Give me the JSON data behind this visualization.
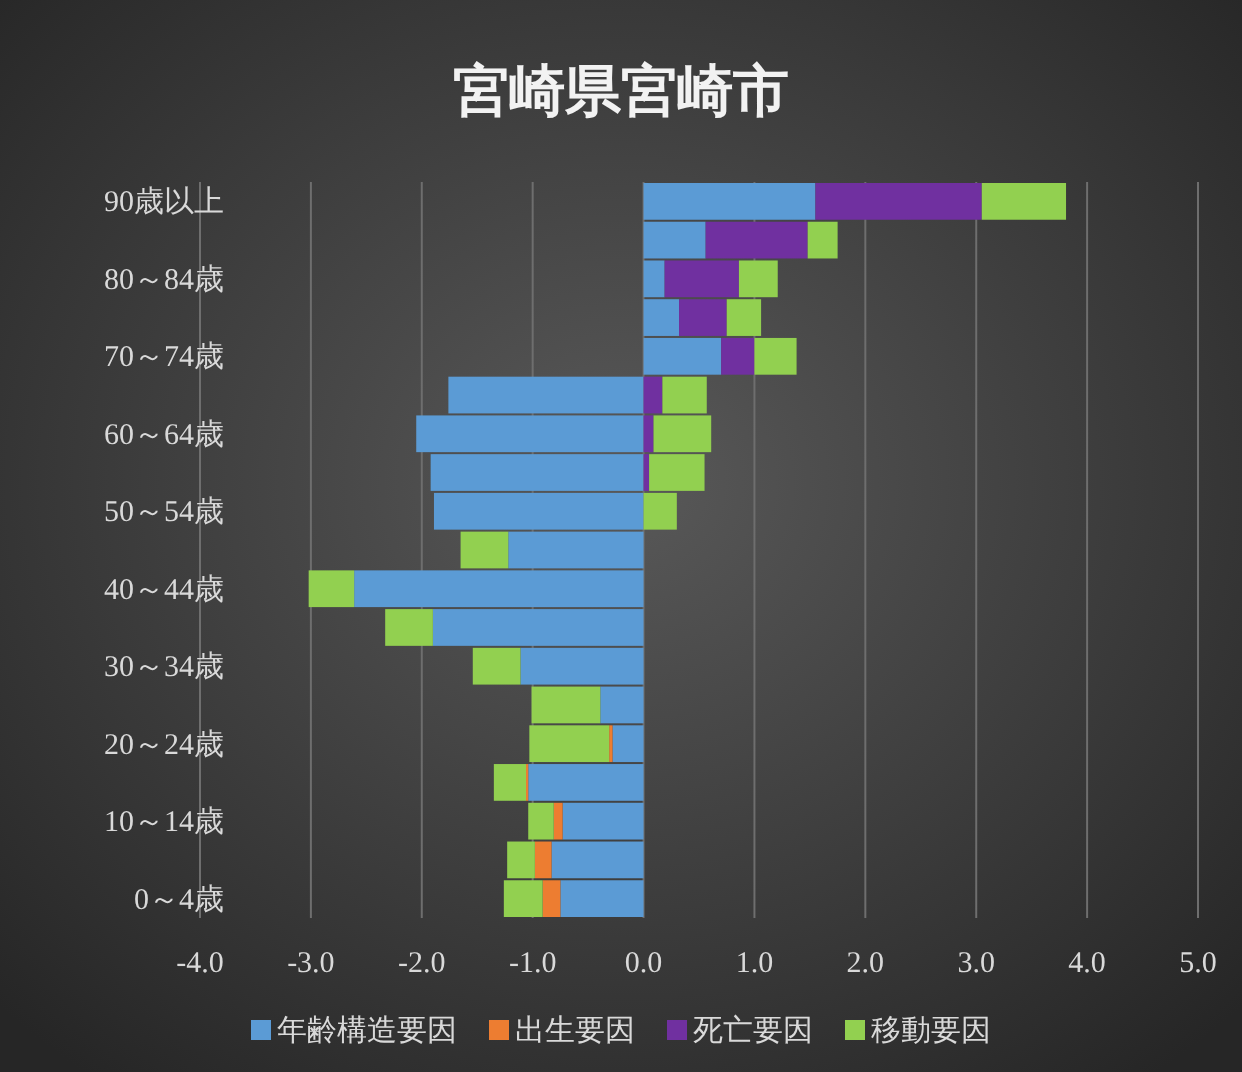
{
  "chart_data": {
    "type": "bar",
    "orientation": "horizontal",
    "stacked": true,
    "title": "宮崎県宮崎市",
    "categories": [
      "90歳以上",
      null,
      "80～84歳",
      null,
      "70～74歳",
      null,
      "60～64歳",
      null,
      "50～54歳",
      null,
      "40～44歳",
      null,
      "30～34歳",
      null,
      "20～24歳",
      null,
      "10～14歳",
      null,
      "0～4歳"
    ],
    "series": [
      {
        "name": "年齢構造要因",
        "color": "#5b9bd5",
        "values": [
          1.55,
          0.56,
          0.19,
          0.32,
          0.7,
          -1.76,
          -2.05,
          -1.92,
          -1.89,
          -1.22,
          -2.61,
          -1.9,
          -1.11,
          -0.39,
          -0.28,
          -1.04,
          -0.73,
          -0.83,
          -0.75
        ]
      },
      {
        "name": "出生要因",
        "color": "#ed7d31",
        "values": [
          0,
          0,
          0,
          0,
          0,
          0,
          0,
          0,
          0,
          0,
          0,
          0,
          0,
          0,
          -0.03,
          -0.02,
          -0.08,
          -0.15,
          -0.16
        ]
      },
      {
        "name": "死亡要因",
        "color": "#7030a0",
        "values": [
          1.5,
          0.92,
          0.67,
          0.43,
          0.3,
          0.17,
          0.09,
          0.05,
          0,
          0,
          0,
          0,
          0,
          0,
          0,
          0,
          0,
          0,
          0
        ]
      },
      {
        "name": "移動要因",
        "color": "#92d050",
        "values": [
          0.76,
          0.27,
          0.35,
          0.31,
          0.38,
          0.4,
          0.52,
          0.5,
          0.3,
          -0.43,
          -0.41,
          -0.43,
          -0.43,
          -0.62,
          -0.72,
          -0.29,
          -0.23,
          -0.25,
          -0.35
        ]
      }
    ],
    "xlim": [
      -4,
      5
    ],
    "xticks": [
      {
        "value": -4,
        "label": "-4.0"
      },
      {
        "value": -3,
        "label": "-3.0"
      },
      {
        "value": -2,
        "label": "-2.0"
      },
      {
        "value": -1,
        "label": "-1.0"
      },
      {
        "value": 0,
        "label": "0.0"
      },
      {
        "value": 1,
        "label": "1.0"
      },
      {
        "value": 2,
        "label": "2.0"
      },
      {
        "value": 3,
        "label": "3.0"
      },
      {
        "value": 4,
        "label": "4.0"
      },
      {
        "value": 5,
        "label": "5.0"
      }
    ],
    "grid": "x",
    "legend": "bottom"
  }
}
